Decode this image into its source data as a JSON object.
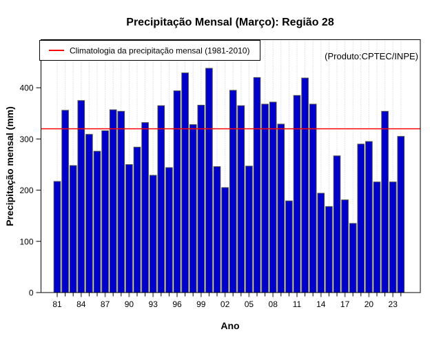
{
  "title": "Precipitação Mensal (Março): Região 28",
  "legend": {
    "label": "Climatologia da precipitação mensal (1981-2010)"
  },
  "watermark": "(Produto:CPTEC/INPE)",
  "axes": {
    "x_label": "Ano",
    "y_label": "Precipitação mensal (mm)",
    "y_ticks": [
      0,
      100,
      200,
      300,
      400
    ],
    "x_tick_labels": [
      "81",
      "84",
      "87",
      "90",
      "93",
      "96",
      "99",
      "02",
      "05",
      "08",
      "11",
      "14",
      "17",
      "20",
      "23"
    ]
  },
  "colors": {
    "bar_fill": "#0000CD",
    "bar_border": "#4D4D4D",
    "climatology_line": "#FF0000",
    "grid": "#C9C9C9",
    "watermark_text": "#8C8C8C",
    "box_border": "#000000"
  },
  "chart_data": {
    "type": "bar",
    "title": "Precipitação Mensal (Março): Região 28",
    "xlabel": "Ano",
    "ylabel": "Precipitação mensal (mm)",
    "categories": [
      1981,
      1982,
      1983,
      1984,
      1985,
      1986,
      1987,
      1988,
      1989,
      1990,
      1991,
      1992,
      1993,
      1994,
      1995,
      1996,
      1997,
      1998,
      1999,
      2000,
      2001,
      2002,
      2003,
      2004,
      2005,
      2006,
      2007,
      2008,
      2009,
      2010,
      2011,
      2012,
      2013,
      2014,
      2015,
      2016,
      2017,
      2018,
      2019,
      2020,
      2021,
      2022,
      2023,
      2024
    ],
    "values": [
      217,
      356,
      248,
      375,
      309,
      276,
      316,
      357,
      354,
      250,
      284,
      332,
      229,
      365,
      244,
      394,
      429,
      328,
      366,
      438,
      246,
      205,
      395,
      365,
      247,
      420,
      368,
      372,
      329,
      179,
      385,
      419,
      368,
      194,
      168,
      267,
      181,
      135,
      290,
      295,
      216,
      354,
      216,
      305
    ],
    "climatology_line_value": 320,
    "climatology_line_label": "Climatologia da precipitação mensal (1981-2010)",
    "ylim": [
      0,
      495
    ],
    "y_tick_step": 100,
    "x_tick_label_step": 3,
    "grid": "vertical-dotted",
    "legend_position": "top-left",
    "annotation": "(Produto:CPTEC/INPE)"
  }
}
